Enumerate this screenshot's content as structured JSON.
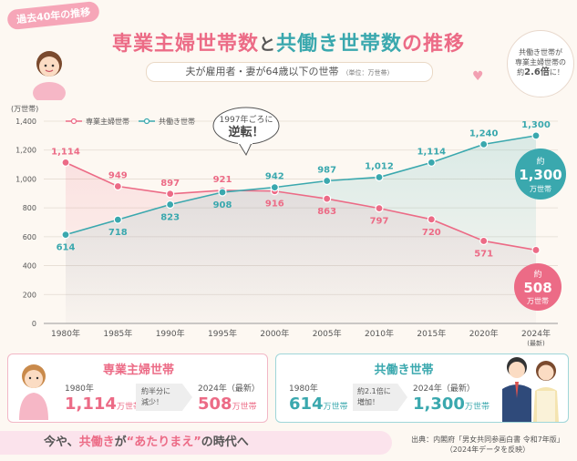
{
  "tag": "過去40年の推移",
  "title": {
    "part1": "専業主婦世帯数",
    "part2": "と",
    "part3": "共働き世帯数",
    "part4": "の推移"
  },
  "subtitle": {
    "main": "夫が雇用者・妻が64歳以下の世帯",
    "unit": "（単位：万世帯）"
  },
  "note": {
    "line1": "共働き世帯が",
    "line2": "専業主婦世帯の",
    "line3a": "約",
    "line3b": "2.6倍",
    "line3c": "に！"
  },
  "callout": {
    "line1": "1997年ごろに",
    "line2": "逆転！"
  },
  "colors": {
    "pink": "#ec6b86",
    "teal": "#3aa8ae"
  },
  "chart_data": {
    "type": "line",
    "ylabel": "(万世帯)",
    "ylim": [
      0,
      1400
    ],
    "yticks": [
      "0",
      "200",
      "400",
      "600",
      "800",
      "1,000",
      "1,200",
      "1,400"
    ],
    "x": [
      "1980年",
      "1985年",
      "1990年",
      "1995年",
      "2000年",
      "2005年",
      "2010年",
      "2015年",
      "2020年",
      "2024年"
    ],
    "x_sub": [
      "",
      "",
      "",
      "",
      "",
      "",
      "",
      "",
      "",
      "(最新)"
    ],
    "series": [
      {
        "name": "専業主婦世帯",
        "color": "#ec6b86",
        "values": [
          1114,
          949,
          897,
          921,
          916,
          863,
          797,
          720,
          571,
          508
        ],
        "labels": [
          "1,114",
          "949",
          "897",
          "921",
          "916",
          "863",
          "797",
          "720",
          "571",
          ""
        ]
      },
      {
        "name": "共働き世帯",
        "color": "#3aa8ae",
        "values": [
          614,
          718,
          823,
          908,
          942,
          987,
          1012,
          1114,
          1240,
          1300
        ],
        "labels": [
          "614",
          "718",
          "823",
          "908",
          "942",
          "987",
          "1,012",
          "1,114",
          "1,240",
          "1,300"
        ]
      }
    ],
    "legend": "top-left",
    "grid": true,
    "end_bubbles": [
      {
        "prefix": "約",
        "value": "1,300",
        "unit": "万世帯"
      },
      {
        "prefix": "約",
        "value": "508",
        "unit": "万世帯"
      }
    ]
  },
  "card_left": {
    "title": "専業主婦世帯",
    "from_year": "1980年",
    "from_value": "1,114",
    "from_unit": "万世帯",
    "arrow_line1": "約半分に",
    "arrow_line2": "減少！",
    "to_year": "2024年（最新）",
    "to_value": "508",
    "to_unit": "万世帯"
  },
  "card_right": {
    "title": "共働き世帯",
    "from_year": "1980年",
    "from_value": "614",
    "from_unit": "万世帯",
    "arrow_line1": "約2.1倍に",
    "arrow_line2": "増加！",
    "to_year": "2024年（最新）",
    "to_value": "1,300",
    "to_unit": "万世帯"
  },
  "banner": {
    "pre": "今や、",
    "mid": "共働き",
    "post1": "が",
    "quote": "“あたりまえ”",
    "post2": "の時代へ"
  },
  "source": {
    "line1": "出典：内閣府「男女共同参画白書 令和7年版」",
    "line2": "（2024年データを反映）"
  }
}
